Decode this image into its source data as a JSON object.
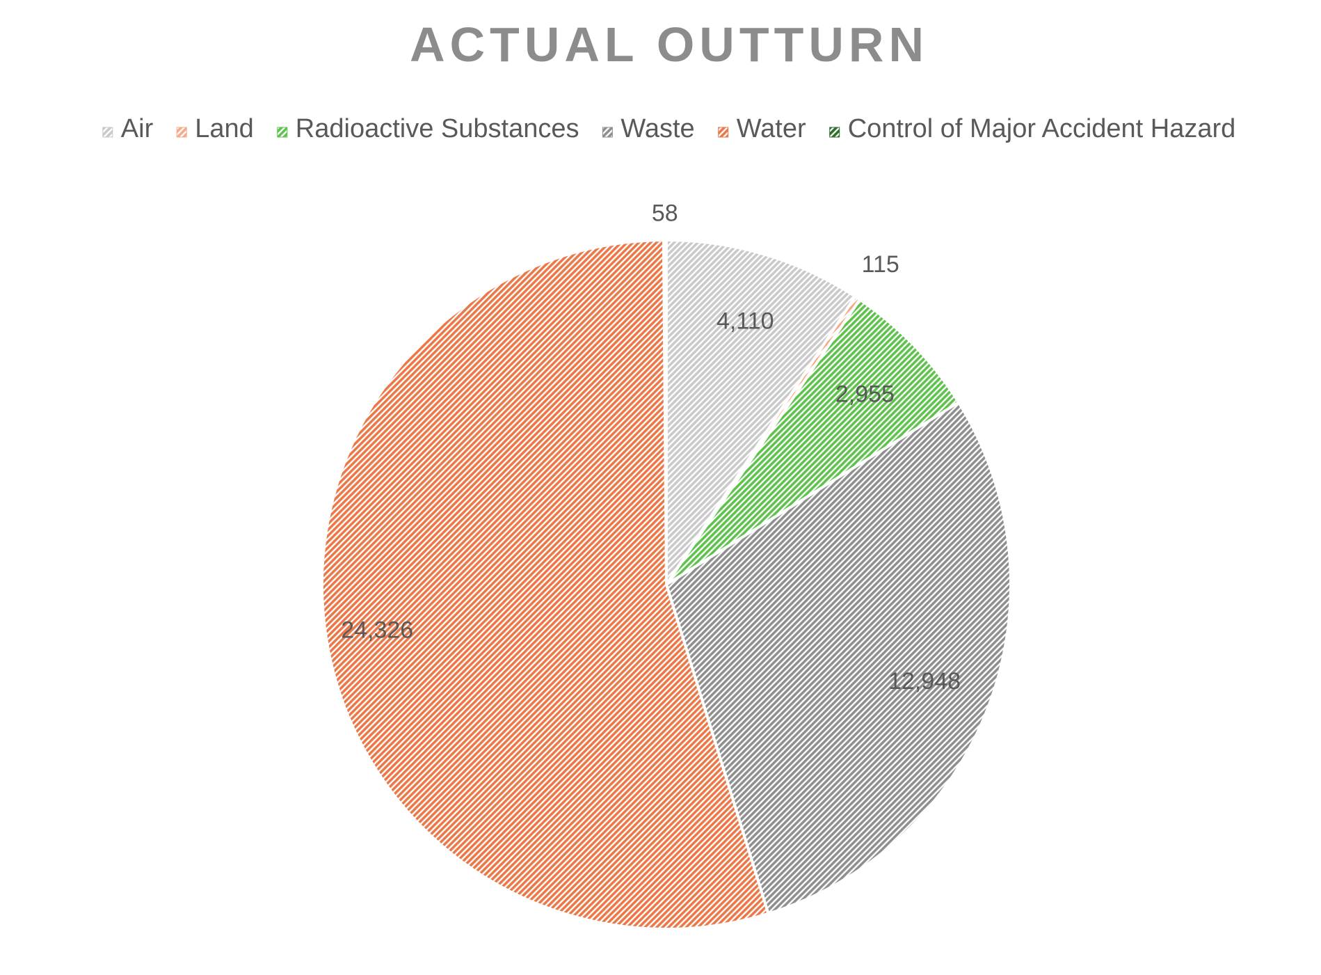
{
  "chart_data": {
    "type": "pie",
    "title": "ACTUAL OUTTURN",
    "legend_position": "top",
    "start_angle": "12 o'clock, clockwise",
    "categories": [
      "Air",
      "Land",
      "Radioactive Substances",
      "Waste",
      "Water",
      "Control of Major Accident Hazard"
    ],
    "values": [
      4110,
      115,
      2955,
      12948,
      24326,
      58
    ],
    "data_labels": [
      "4,110",
      "115",
      "2,955",
      "12,948",
      "24,326",
      "58"
    ],
    "fill_style": "diagonal hatch",
    "colors": [
      "#c9c9c9",
      "#f4ab88",
      "#5ec24c",
      "#8f8f8f",
      "#ea7848",
      "#2e6e2c"
    ]
  }
}
